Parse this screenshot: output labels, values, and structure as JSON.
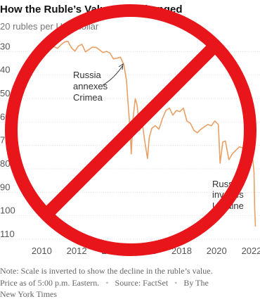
{
  "chart_data": {
    "type": "line",
    "title": "How the Ruble’s Value Has Changed",
    "axis_unit_label": "20 rubles per U.S. dollar",
    "y_inverted": true,
    "ylim": [
      20,
      110
    ],
    "xlim": [
      2008.5,
      2022.4
    ],
    "y_ticks": [
      30,
      40,
      50,
      60,
      70,
      80,
      90,
      100,
      110
    ],
    "x_ticks": [
      "2010",
      "2012",
      "2014",
      "2016",
      "2018",
      "2020",
      "2022"
    ],
    "grid": "horizontal",
    "series": [
      {
        "color": "#E8A066",
        "points": [
          [
            2009.9,
            30.5
          ],
          [
            2010.1,
            31.5
          ],
          [
            2010.3,
            30.0
          ],
          [
            2010.5,
            31.2
          ],
          [
            2010.7,
            30.3
          ],
          [
            2010.9,
            31.0
          ],
          [
            2011.1,
            29.5
          ],
          [
            2011.3,
            28.3
          ],
          [
            2011.5,
            28.0
          ],
          [
            2011.7,
            30.8
          ],
          [
            2011.9,
            32.2
          ],
          [
            2012.1,
            30.0
          ],
          [
            2012.3,
            29.3
          ],
          [
            2012.5,
            32.5
          ],
          [
            2012.7,
            31.5
          ],
          [
            2012.9,
            30.5
          ],
          [
            2013.1,
            30.6
          ],
          [
            2013.3,
            31.6
          ],
          [
            2013.5,
            32.8
          ],
          [
            2013.7,
            32.3
          ],
          [
            2013.9,
            33.0
          ],
          [
            2014.1,
            35.5
          ],
          [
            2014.3,
            35.2
          ],
          [
            2014.5,
            34.8
          ],
          [
            2014.7,
            38.0
          ],
          [
            2014.85,
            45.0
          ],
          [
            2014.95,
            56.0
          ],
          [
            2015.05,
            65.0
          ],
          [
            2015.12,
            76.0
          ],
          [
            2015.22,
            61.0
          ],
          [
            2015.35,
            52.5
          ],
          [
            2015.45,
            55.0
          ],
          [
            2015.6,
            66.0
          ],
          [
            2015.75,
            63.0
          ],
          [
            2015.9,
            71.0
          ],
          [
            2016.05,
            78.0
          ],
          [
            2016.15,
            69.0
          ],
          [
            2016.3,
            65.0
          ],
          [
            2016.5,
            64.0
          ],
          [
            2016.7,
            65.5
          ],
          [
            2016.9,
            61.0
          ],
          [
            2017.1,
            57.5
          ],
          [
            2017.3,
            56.5
          ],
          [
            2017.5,
            59.5
          ],
          [
            2017.7,
            57.5
          ],
          [
            2017.9,
            58.0
          ],
          [
            2018.1,
            56.5
          ],
          [
            2018.3,
            62.0
          ],
          [
            2018.5,
            63.0
          ],
          [
            2018.7,
            66.0
          ],
          [
            2018.9,
            67.0
          ],
          [
            2019.1,
            65.5
          ],
          [
            2019.3,
            64.5
          ],
          [
            2019.5,
            63.5
          ],
          [
            2019.7,
            64.0
          ],
          [
            2019.9,
            62.0
          ],
          [
            2020.1,
            63.5
          ],
          [
            2020.2,
            80.0
          ],
          [
            2020.35,
            71.0
          ],
          [
            2020.5,
            70.5
          ],
          [
            2020.7,
            78.5
          ],
          [
            2020.9,
            76.0
          ],
          [
            2021.1,
            74.5
          ],
          [
            2021.3,
            73.0
          ],
          [
            2021.5,
            73.5
          ],
          [
            2021.7,
            72.5
          ],
          [
            2021.9,
            73.5
          ],
          [
            2022.0,
            76.0
          ],
          [
            2022.08,
            79.0
          ],
          [
            2022.14,
            84.0
          ],
          [
            2022.18,
            100.0
          ],
          [
            2022.22,
            107.0
          ]
        ]
      }
    ],
    "annotations": [
      {
        "lines": [
          "Russia",
          "annexes",
          "Crimea"
        ]
      },
      {
        "lines": [
          "Russia",
          "invades",
          "Ukraine"
        ]
      }
    ],
    "note_lines": [
      "Note: Scale is inverted to show the decline in the ruble’s value.",
      "Price as of 5:00 p.m. Eastern.",
      "Source: FactSet",
      "By The",
      "New York Times"
    ],
    "overlay": {
      "symbol": "prohibition",
      "color": "#E8151B"
    }
  }
}
